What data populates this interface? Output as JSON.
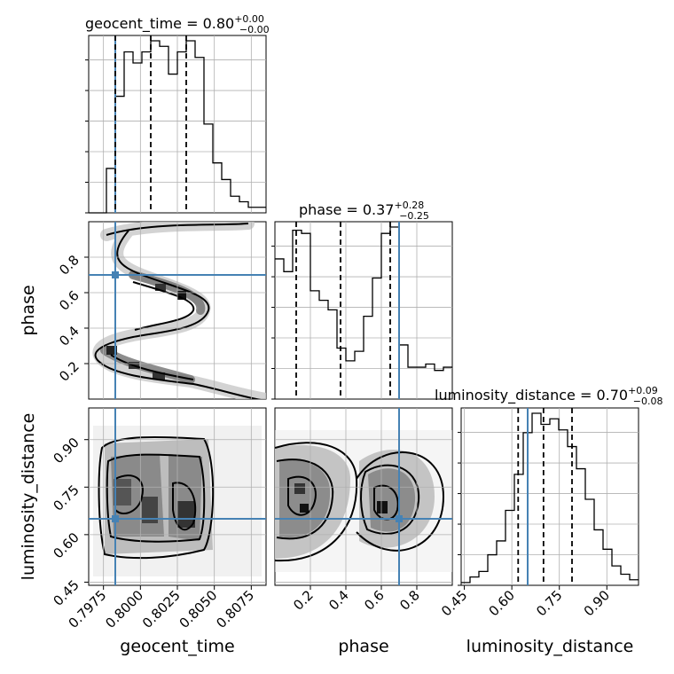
{
  "chart_data": {
    "type": "corner",
    "parameters": [
      "geocent_time",
      "phase",
      "luminosity_distance"
    ],
    "ranges": {
      "geocent_time": [
        0.7965,
        0.8085
      ],
      "phase": [
        0.0,
        1.0
      ],
      "luminosity_distance": [
        0.44,
        1.0
      ]
    },
    "ticks": {
      "geocent_time": [
        "0.7975",
        "0.8000",
        "0.8025",
        "0.8050",
        "0.8075"
      ],
      "phase": [
        "0.2",
        "0.4",
        "0.6",
        "0.8"
      ],
      "luminosity_distance": [
        "0.45",
        "0.60",
        "0.75",
        "0.90"
      ]
    },
    "titles": {
      "geocent_time": {
        "prefix": "geocent_time = 0.80",
        "plus": "+0.00",
        "minus": "−0.00"
      },
      "phase": {
        "prefix": "phase = 0.37",
        "plus": "+0.28",
        "minus": "−0.25"
      },
      "luminosity_distance": {
        "prefix": "luminosity_distance = 0.70",
        "plus": "+0.09",
        "minus": "−0.08"
      }
    },
    "quantiles": {
      "geocent_time": [
        0.7983,
        0.8007,
        0.8031
      ],
      "phase": [
        0.12,
        0.37,
        0.65
      ],
      "luminosity_distance": [
        0.62,
        0.7,
        0.79
      ]
    },
    "truths": {
      "geocent_time": 0.7983,
      "phase": 0.7,
      "luminosity_distance": 0.65
    },
    "truth_color": "#4682b4",
    "histograms": {
      "geocent_time": {
        "edges_start": 0.7965,
        "bin_width": 0.0006,
        "counts": [
          0,
          0,
          8,
          21,
          29,
          27,
          29,
          31,
          30,
          25,
          29,
          31,
          28,
          16,
          9,
          6,
          3,
          2,
          1,
          1
        ]
      },
      "phase": {
        "edges_start": 0.0,
        "bin_width": 0.05,
        "counts": [
          44,
          40,
          53,
          52,
          34,
          31,
          28,
          16,
          12,
          15,
          26,
          38,
          52,
          54,
          17,
          10,
          10,
          11,
          9,
          10
        ]
      },
      "luminosity_distance": {
        "edges_start": 0.44,
        "bin_width": 0.028,
        "counts": [
          1,
          3,
          5,
          11,
          16,
          27,
          40,
          55,
          62,
          58,
          60,
          56,
          50,
          42,
          31,
          20,
          13,
          7,
          4,
          2
        ]
      }
    },
    "density_2d": {
      "phase_vs_geocent_time": "sinusoidal ridge: phase oscillates with geocent_time between ~0.05 and ~1.0",
      "luminosity_distance_vs_geocent_time": "broad blobs centered near luminosity_distance 0.70",
      "luminosity_distance_vs_phase": "two blobs near phase 0.15 and 0.62"
    }
  }
}
